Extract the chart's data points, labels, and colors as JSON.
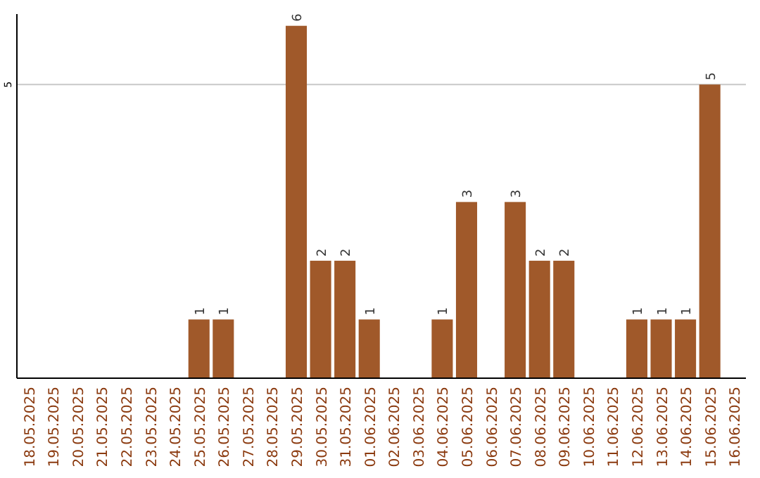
{
  "chart_data": {
    "type": "bar",
    "categories": [
      "18.05.2025",
      "19.05.2025",
      "20.05.2025",
      "21.05.2025",
      "22.05.2025",
      "23.05.2025",
      "24.05.2025",
      "25.05.2025",
      "26.05.2025",
      "27.05.2025",
      "28.05.2025",
      "29.05.2025",
      "30.05.2025",
      "31.05.2025",
      "01.06.2025",
      "02.06.2025",
      "03.06.2025",
      "04.06.2025",
      "05.06.2025",
      "06.06.2025",
      "07.06.2025",
      "08.06.2025",
      "09.06.2025",
      "10.06.2025",
      "11.06.2025",
      "12.06.2025",
      "13.06.2025",
      "14.06.2025",
      "15.06.2025",
      "16.06.2025"
    ],
    "values": [
      0,
      0,
      0,
      0,
      0,
      0,
      0,
      1,
      1,
      0,
      0,
      6,
      2,
      2,
      1,
      0,
      0,
      1,
      3,
      0,
      3,
      2,
      2,
      0,
      0,
      1,
      1,
      1,
      5,
      0
    ],
    "value_labels": [
      null,
      null,
      null,
      null,
      null,
      null,
      null,
      "1",
      "1",
      null,
      null,
      "6",
      "2",
      "2",
      "1",
      null,
      null,
      "1",
      "3",
      null,
      "3",
      "2",
      "2",
      null,
      null,
      "1",
      "1",
      "1",
      "5",
      null
    ],
    "color": "#a0592a",
    "ylim": [
      0,
      6.2
    ],
    "yticks": [
      5
    ],
    "grid": "y"
  }
}
